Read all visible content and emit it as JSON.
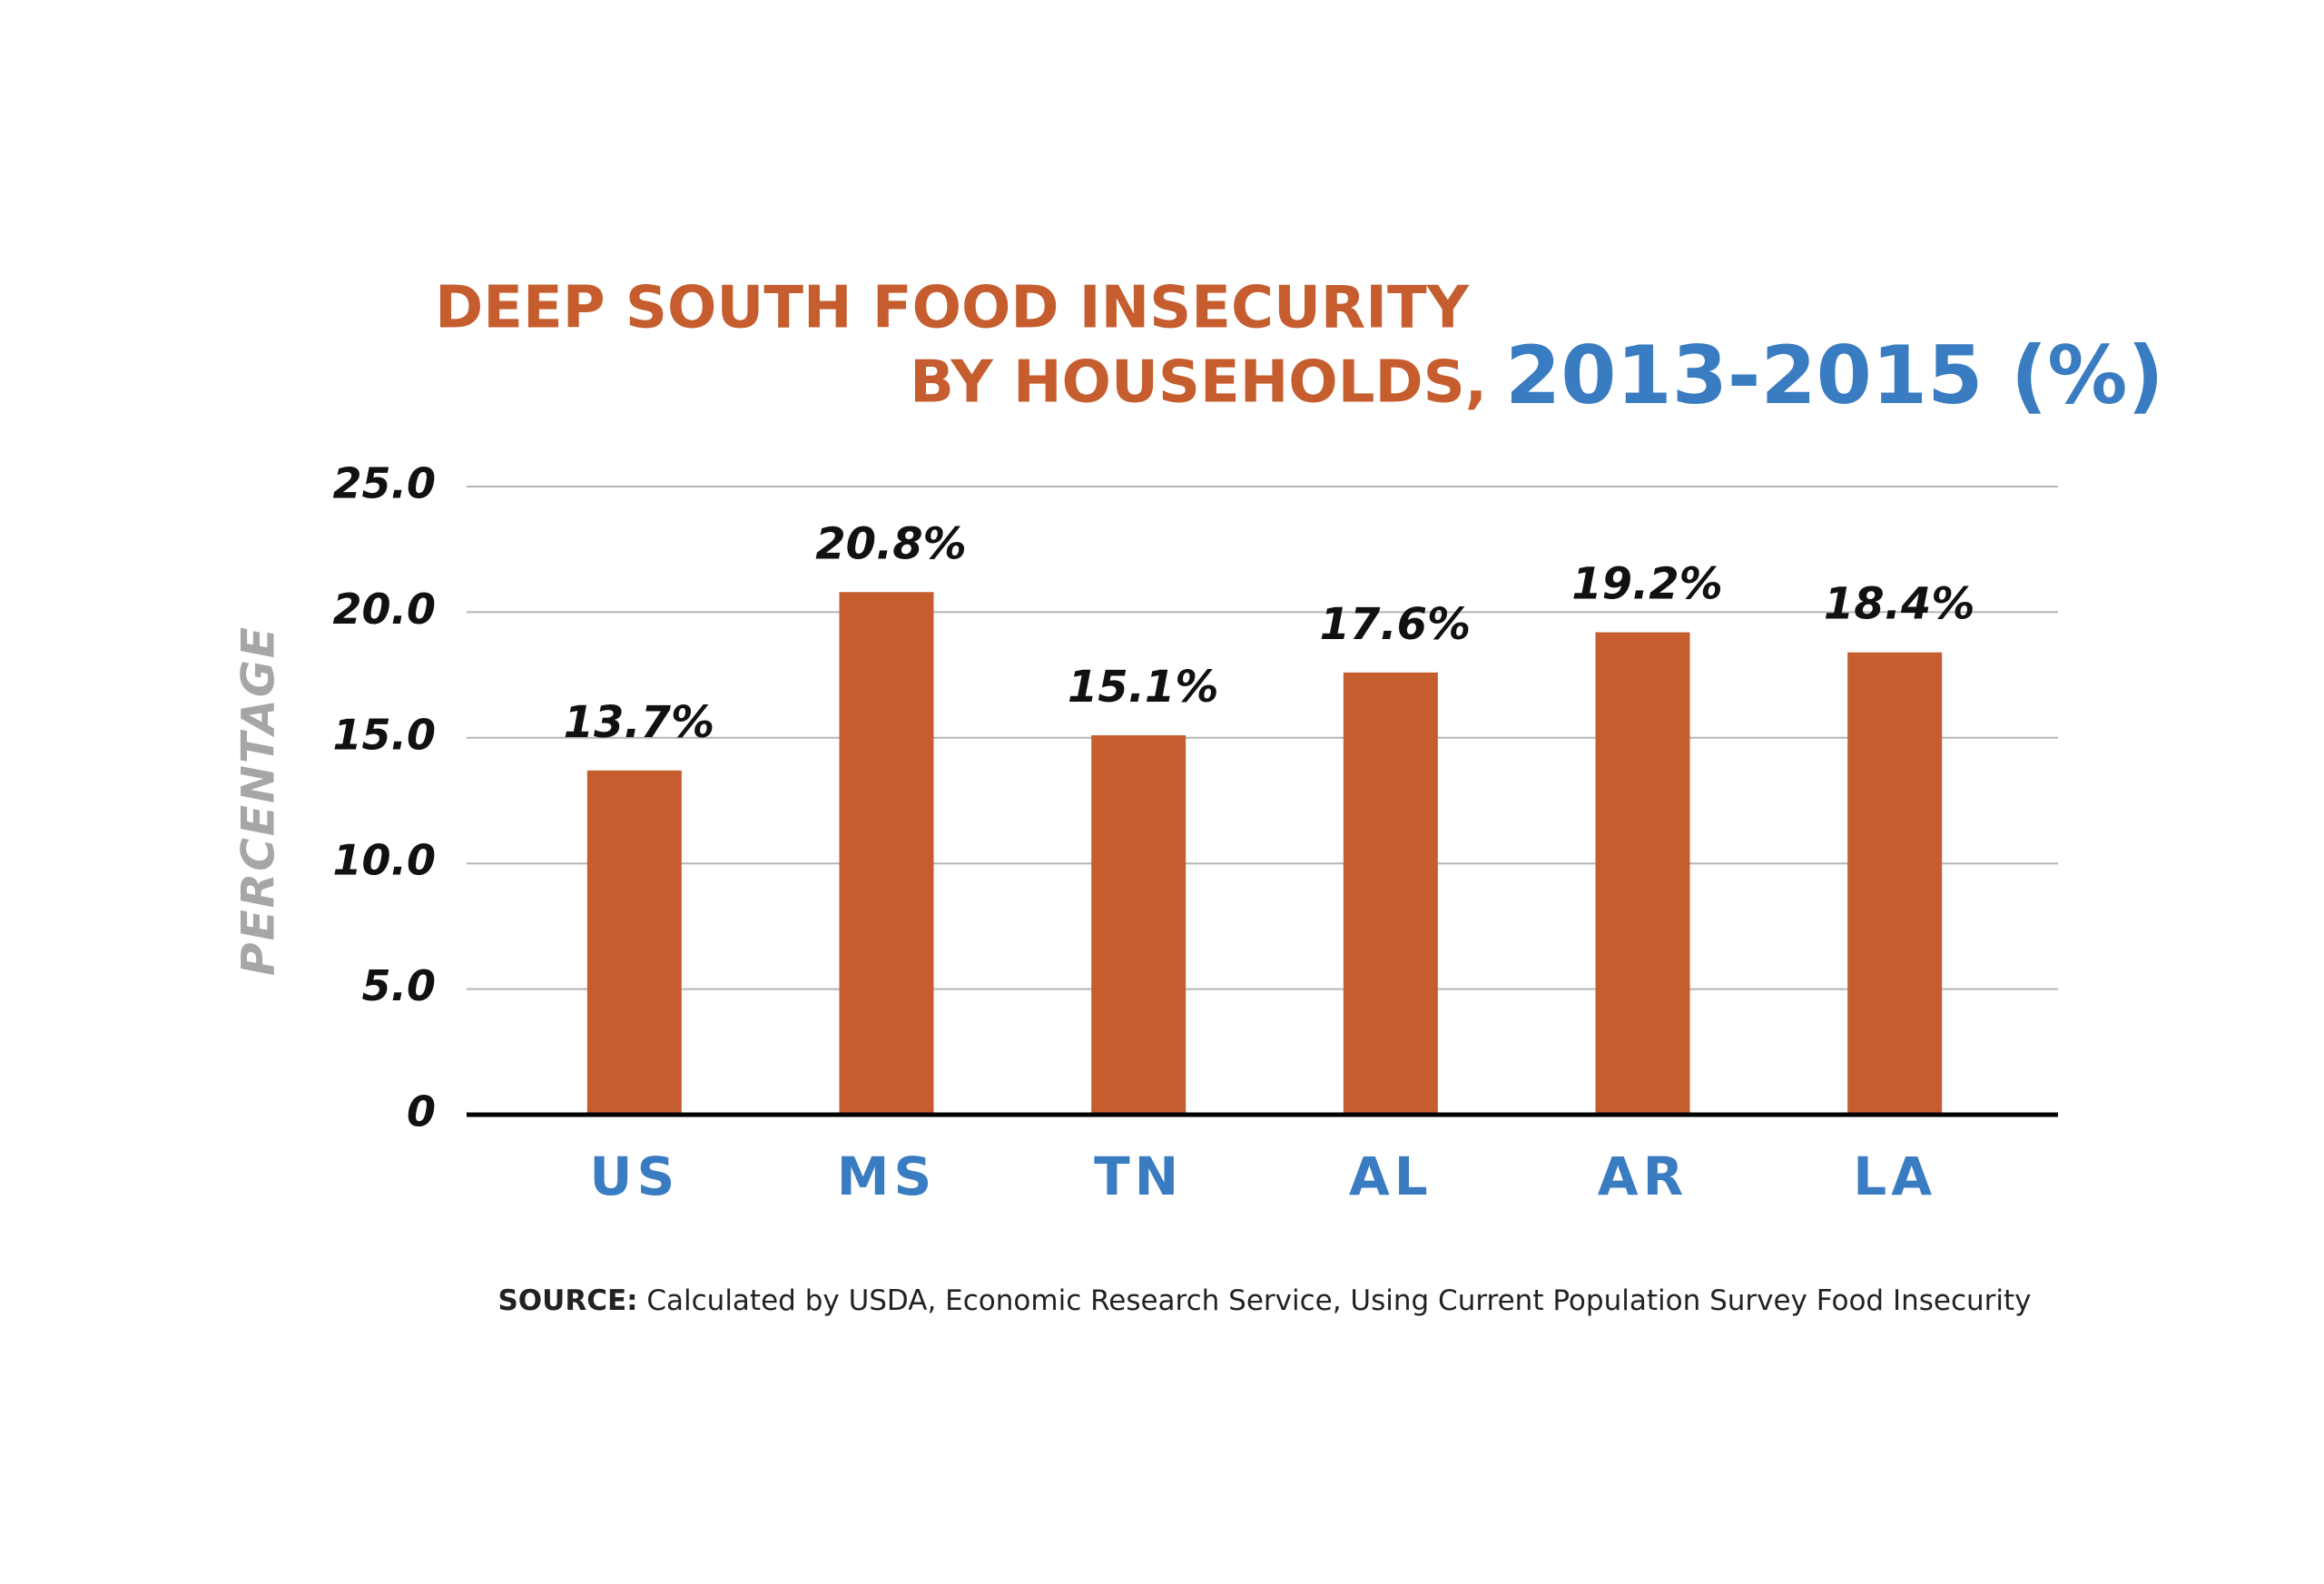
{
  "chart_data": {
    "type": "bar",
    "title_lines": [
      "DEEP SOUTH FOOD INSECURITY",
      "BY HOUSEHOLDS,",
      "2013-2015 (%)"
    ],
    "y_label": "PERCENTAGE",
    "categories": [
      "US",
      "MS",
      "TN",
      "AL",
      "AR",
      "LA"
    ],
    "values": [
      13.7,
      20.8,
      15.1,
      17.6,
      19.2,
      18.4
    ],
    "value_labels": [
      "13.7%",
      "20.8%",
      "15.1%",
      "17.6%",
      "19.2%",
      "18.4%"
    ],
    "color": "#c65d2e",
    "ylim": [
      0,
      25
    ],
    "yticks": [
      0,
      {
        "value": 5,
        "label": "5.0"
      },
      {
        "value": 10,
        "label": "10.0"
      },
      {
        "value": 15,
        "label": "15.0"
      },
      {
        "value": 20,
        "label": "20.0"
      },
      {
        "value": 25,
        "label": "25.0"
      }
    ],
    "grid": true,
    "source": {
      "label": "SOURCE:",
      "text": "Calculated by USDA, Economic Research Service, Using Current Population Survey Food Insecurity"
    }
  }
}
